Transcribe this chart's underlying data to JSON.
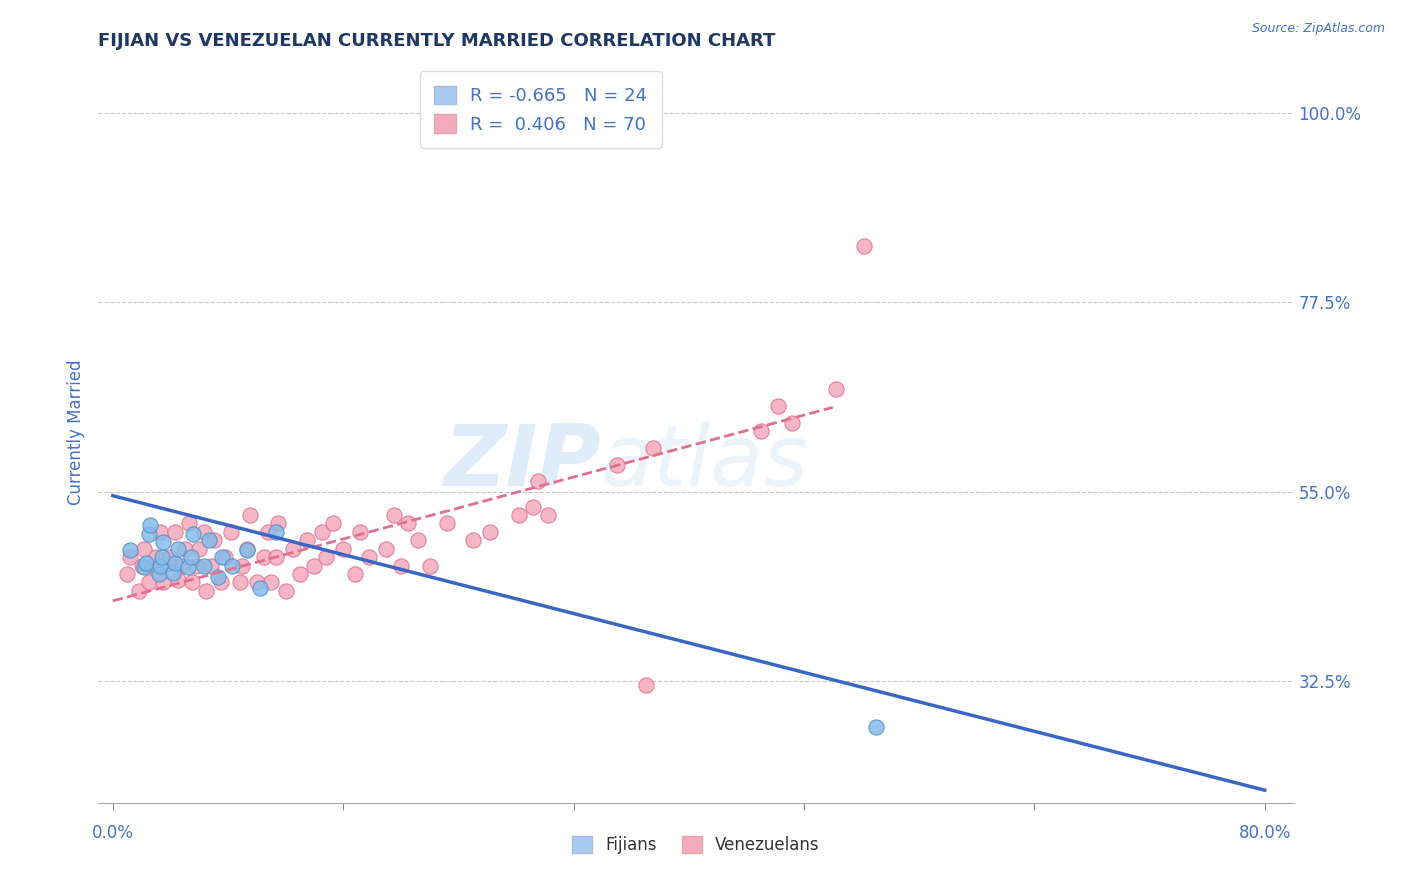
{
  "title": "FIJIAN VS VENEZUELAN CURRENTLY MARRIED CORRELATION CHART",
  "source": "Source: ZipAtlas.com",
  "ylabel": "Currently Married",
  "xlim": [
    -0.01,
    0.82
  ],
  "ylim": [
    0.18,
    1.06
  ],
  "ytick_vals": [
    0.325,
    0.55,
    0.775,
    1.0
  ],
  "ytick_labels": [
    "32.5%",
    "55.0%",
    "77.5%",
    "100.0%"
  ],
  "xtick_vals": [
    0.0,
    0.16,
    0.32,
    0.48,
    0.64,
    0.8
  ],
  "xtick_labels": [
    "",
    "",
    "",
    "",
    "",
    ""
  ],
  "xleft_label": "0.0%",
  "xright_label": "80.0%",
  "fijian_color": "#85BBE8",
  "fijian_edge": "#5090C8",
  "venezuelan_color": "#F5AABB",
  "venezuelan_edge": "#E07090",
  "fijian_line_color": "#3A66C4",
  "venezuelan_line_color": "#E07090",
  "R_fijian": -0.665,
  "N_fijian": 24,
  "R_venezuelan": 0.406,
  "N_venezuelan": 70,
  "title_color": "#1F3864",
  "axis_color": "#4472C4",
  "grid_color": "#C8C8C8",
  "bg_color": "#FFFFFF",
  "legend_fijian_color": "#A8CCF0",
  "legend_venezuelan_color": "#F5AABB",
  "fijian_x": [
    0.012,
    0.022,
    0.023,
    0.025,
    0.026,
    0.032,
    0.033,
    0.034,
    0.035,
    0.042,
    0.043,
    0.045,
    0.052,
    0.054,
    0.056,
    0.063,
    0.067,
    0.073,
    0.076,
    0.083,
    0.093,
    0.102,
    0.113,
    0.53
  ],
  "fijian_y": [
    0.48,
    0.46,
    0.465,
    0.5,
    0.51,
    0.452,
    0.462,
    0.472,
    0.49,
    0.453,
    0.465,
    0.482,
    0.46,
    0.472,
    0.5,
    0.462,
    0.492,
    0.448,
    0.472,
    0.462,
    0.48,
    0.435,
    0.502,
    0.27
  ],
  "venezuelan_x": [
    0.01,
    0.012,
    0.018,
    0.02,
    0.022,
    0.025,
    0.028,
    0.03,
    0.033,
    0.035,
    0.038,
    0.04,
    0.043,
    0.045,
    0.048,
    0.05,
    0.053,
    0.055,
    0.058,
    0.06,
    0.063,
    0.065,
    0.068,
    0.07,
    0.075,
    0.078,
    0.082,
    0.088,
    0.09,
    0.093,
    0.095,
    0.1,
    0.105,
    0.108,
    0.11,
    0.113,
    0.115,
    0.12,
    0.125,
    0.13,
    0.135,
    0.14,
    0.145,
    0.148,
    0.153,
    0.16,
    0.168,
    0.172,
    0.178,
    0.19,
    0.195,
    0.2,
    0.205,
    0.212,
    0.22,
    0.232,
    0.25,
    0.262,
    0.282,
    0.292,
    0.295,
    0.302,
    0.35,
    0.375,
    0.45,
    0.462,
    0.472,
    0.502,
    0.522,
    0.37
  ],
  "venezuelan_y": [
    0.452,
    0.472,
    0.432,
    0.462,
    0.482,
    0.442,
    0.462,
    0.472,
    0.502,
    0.442,
    0.465,
    0.472,
    0.502,
    0.445,
    0.462,
    0.482,
    0.512,
    0.442,
    0.462,
    0.482,
    0.502,
    0.432,
    0.462,
    0.492,
    0.442,
    0.472,
    0.502,
    0.442,
    0.462,
    0.482,
    0.522,
    0.442,
    0.472,
    0.502,
    0.442,
    0.472,
    0.512,
    0.432,
    0.482,
    0.452,
    0.492,
    0.462,
    0.502,
    0.472,
    0.512,
    0.482,
    0.452,
    0.502,
    0.472,
    0.482,
    0.522,
    0.462,
    0.512,
    0.492,
    0.462,
    0.512,
    0.492,
    0.502,
    0.522,
    0.532,
    0.562,
    0.522,
    0.582,
    0.602,
    0.622,
    0.652,
    0.632,
    0.672,
    0.842,
    0.32
  ],
  "ven_line_x": [
    0.0,
    0.5
  ],
  "ven_line_y_start": 0.42,
  "ven_line_y_end": 0.65,
  "fij_line_x": [
    0.0,
    0.8
  ],
  "fij_line_y_start": 0.545,
  "fij_line_y_end": 0.195
}
